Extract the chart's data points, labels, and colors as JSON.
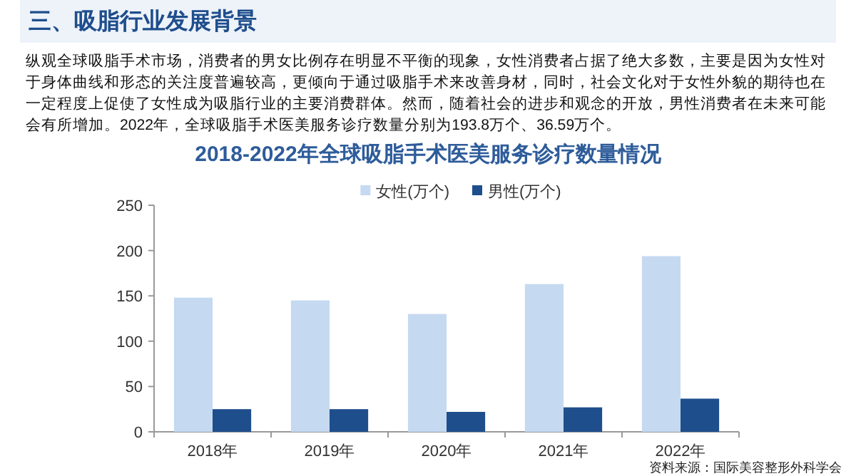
{
  "chart_data": {
    "type": "bar",
    "title": "2018-2022年全球吸脂手术医美服务诊疗数量情况",
    "categories": [
      "2018年",
      "2019年",
      "2020年",
      "2021年",
      "2022年"
    ],
    "series": [
      {
        "name": "女性(万个)",
        "color": "#c5d9f1",
        "values": [
          148,
          145,
          130,
          163,
          193.8
        ]
      },
      {
        "name": "男性(万个)",
        "color": "#1f4e8c",
        "values": [
          25,
          25,
          22,
          27,
          36.59
        ]
      }
    ],
    "ylim": [
      0,
      250
    ],
    "yticks": [
      0,
      50,
      100,
      150,
      200,
      250
    ],
    "grid": false,
    "legend": "top",
    "annotations": [
      "三、吸脂行业发展背景",
      "纵观全球吸脂手术市场，消费者的男女比例存在明显不平衡的现象，女性消费者占据了绝大多数，主要是因为女性对于身体曲线和形态的关注度普遍较高，更倾向于通过吸脂手术来改善身材，同时，社会文化对于女性外貌的期待也在一定程度上促使了女性成为吸脂行业的主要消费群体。然而，随着社会的进步和观念的开放，男性消费者在未来可能会有所增加。2022年，全球吸脂手术医美服务诊疗数量分别为193.8万个、36.59万个。",
      "资料来源：国际美容整形外科学会"
    ]
  }
}
